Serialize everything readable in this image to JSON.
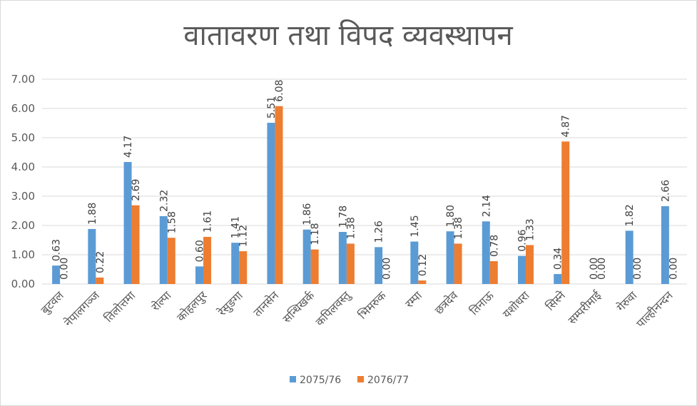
{
  "chart_data": {
    "type": "bar",
    "title": "वातावरण तथा विपद व्यवस्थापन",
    "xlabel": "",
    "ylabel": "",
    "ylim": [
      0,
      7
    ],
    "yticks": [
      "0.00",
      "1.00",
      "2.00",
      "3.00",
      "4.00",
      "5.00",
      "6.00",
      "7.00"
    ],
    "grid": "horizontal",
    "legend_position": "bottom",
    "categories": [
      "बुटवल",
      "नेपालगञ्ज",
      "तिलोत्तमा",
      "रोल्पा",
      "कोहलपुर",
      "रेसुङगा",
      "तानसेन",
      "सन्धिखर्क",
      "कपिलवस्तु",
      "भिमरुक",
      "रम्पा",
      "छत्रदेव",
      "तिनाऊ",
      "यशोधरा",
      "सिस्ने",
      "सम्परीमाई",
      "गेरुवा",
      "पाल्हीनन्दन"
    ],
    "series": [
      {
        "name": "2075/76",
        "color": "#5B9BD5",
        "values": [
          0.63,
          1.88,
          4.17,
          2.32,
          0.6,
          1.41,
          5.51,
          1.86,
          1.78,
          1.26,
          1.45,
          1.8,
          2.14,
          0.96,
          0.34,
          0.0,
          1.82,
          2.66
        ],
        "labels": [
          "0.63",
          "1.88",
          "4.17",
          "2.32",
          "0.60",
          "1.41",
          "5.51",
          "1.86",
          "1.78",
          "1.26",
          "1.45",
          "1.80",
          "2.14",
          "0.96",
          "0.34",
          "0.00",
          "1.82",
          "2.66"
        ]
      },
      {
        "name": "2076/77",
        "color": "#ED7D31",
        "values": [
          0.0,
          0.22,
          2.69,
          1.58,
          1.61,
          1.12,
          6.08,
          1.18,
          1.38,
          0.0,
          0.12,
          1.38,
          0.78,
          1.33,
          4.87,
          0.0,
          0.0,
          0.0
        ],
        "labels": [
          "0.00",
          "0.22",
          "2.69",
          "1.58",
          "1.61",
          "1.12",
          "6.08",
          "1.18",
          "1.38",
          "0.00",
          "0.12",
          "1.38",
          "0.78",
          "1.33",
          "4.87",
          "0.00",
          "0.00",
          "0.00"
        ]
      }
    ]
  },
  "colors": {
    "grid": "#d9d9d9",
    "text": "#595959",
    "frame": "#d9d9d9"
  }
}
